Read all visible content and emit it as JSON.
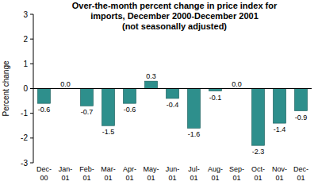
{
  "chart_data": {
    "type": "bar",
    "title": "Over-the-month percent change in price index for imports, December 2000-December 2001",
    "subtitle": "(not seasonally adjusted)",
    "y_label": "Percent change",
    "categories": [
      "Dec-00",
      "Jan-01",
      "Feb-01",
      "Mar-01",
      "Apr-01",
      "May-01",
      "Jun-01",
      "Jul-01",
      "Aug-01",
      "Sep-01",
      "Oct-01",
      "Nov-01",
      "Dec-01"
    ],
    "values": [
      -0.6,
      0.0,
      -0.7,
      -1.5,
      -0.6,
      0.3,
      -0.4,
      -1.6,
      -0.1,
      0.0,
      -2.3,
      -1.4,
      -0.9
    ],
    "value_labels": [
      "-0.6",
      "0.0",
      "-0.7",
      "-1.5",
      "-0.6",
      "0.3",
      "-0.4",
      "-1.6",
      "-0.1",
      "0.0",
      "-2.3",
      "-1.4",
      "-0.9"
    ],
    "color": "#2e8f8c",
    "ylim": [
      -3,
      3
    ],
    "yticks": [
      -3,
      -2,
      -1,
      0,
      1,
      2,
      3
    ],
    "grid": false,
    "data_labels": true
  }
}
